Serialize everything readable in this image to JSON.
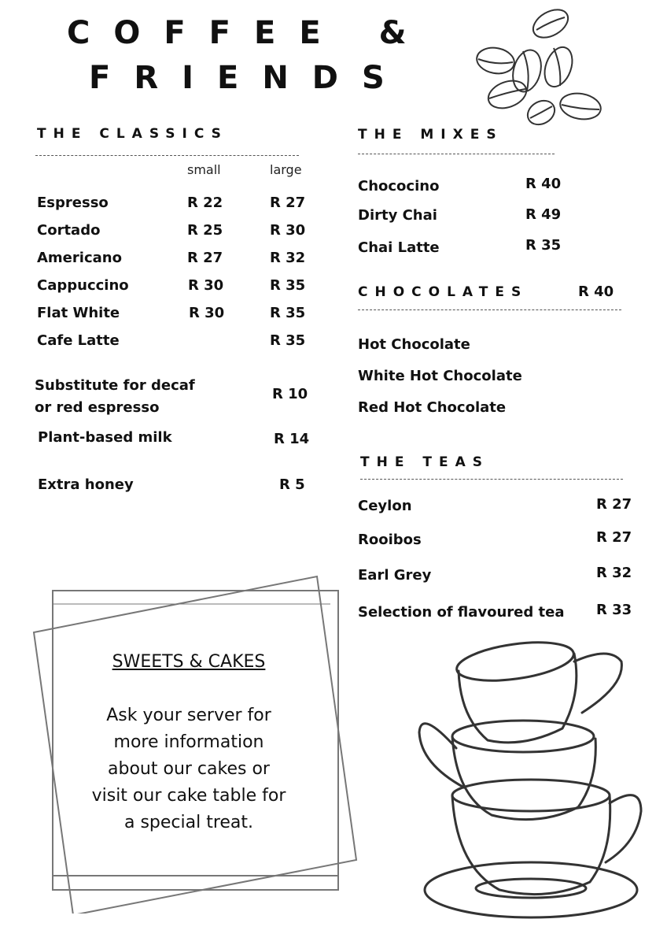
{
  "title": {
    "line1": "COFFEE &",
    "line2": "FRIENDS"
  },
  "classics": {
    "heading": "THE CLASSICS",
    "col_small": "small",
    "col_large": "large",
    "items": [
      {
        "name": "Espresso",
        "small": "R 22",
        "large": "R 27"
      },
      {
        "name": "Cortado",
        "small": "R 25",
        "large": "R 30"
      },
      {
        "name": "Americano",
        "small": "R 27",
        "large": "R 32"
      },
      {
        "name": "Cappuccino",
        "small": "R 30",
        "large": "R 35"
      },
      {
        "name": "Flat White",
        "small": "R 30",
        "large": "R 35"
      },
      {
        "name": "Cafe Latte",
        "small": "",
        "large": "R 35"
      }
    ],
    "extras": [
      {
        "name_line1": "Substitute for decaf",
        "name_line2": "or red espresso",
        "price": "R 10"
      },
      {
        "name_line1": "Plant-based milk",
        "price": "R 14"
      },
      {
        "name_line1": "Extra honey",
        "price": "R 5"
      }
    ]
  },
  "mixes": {
    "heading": "THE MIXES",
    "items": [
      {
        "name": "Chococino",
        "price": "R 40"
      },
      {
        "name": "Dirty Chai",
        "price": "R 49"
      },
      {
        "name": "Chai Latte",
        "price": "R 35"
      }
    ]
  },
  "chocolates": {
    "heading": "CHOCOLATES",
    "price": "R 40",
    "items": [
      "Hot Chocolate",
      "White Hot Chocolate",
      "Red Hot Chocolate"
    ]
  },
  "teas": {
    "heading": "THE TEAS",
    "items": [
      {
        "name": "Ceylon",
        "price": "R 27"
      },
      {
        "name": "Rooibos",
        "price": "R 27"
      },
      {
        "name": "Earl Grey",
        "price": "R 32"
      },
      {
        "name": "Selection of flavoured tea",
        "price": "R 33"
      }
    ]
  },
  "sweets": {
    "heading": "SWEETS & CAKES",
    "lines": [
      "Ask your server for",
      "more information",
      "about our cakes or",
      "visit our cake table for",
      "a special treat."
    ]
  },
  "illustrations": {
    "top_right": "coffee-beans-icon",
    "bottom_right": "stacked-cups-icon"
  }
}
